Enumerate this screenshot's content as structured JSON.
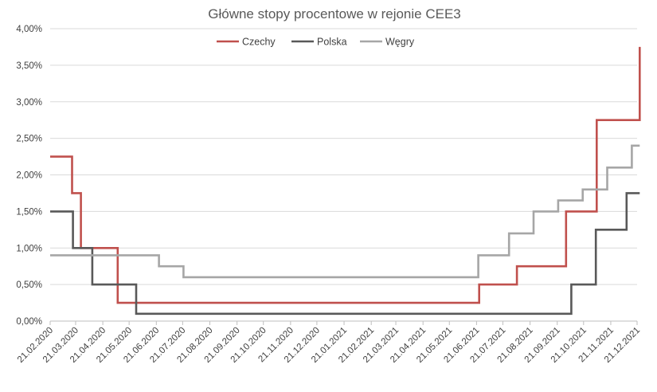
{
  "chart_data": {
    "type": "line",
    "title": "Główne stopy procentowe w rejonie CEE3",
    "xlabel": "",
    "ylabel": "",
    "ylim": [
      0,
      4
    ],
    "xlim": [
      "2020-02-21",
      "2021-12-21"
    ],
    "yticks": [
      0,
      0.5,
      1,
      1.5,
      2,
      2.5,
      3,
      3.5,
      4
    ],
    "ytick_labels": [
      "0,00%",
      "0,50%",
      "1,00%",
      "1,50%",
      "2,00%",
      "2,50%",
      "3,00%",
      "3,50%",
      "4,00%"
    ],
    "xtick_labels": [
      "21.02.2020",
      "21.03.2020",
      "21.04.2020",
      "21.05.2020",
      "21.06.2020",
      "21.07.2020",
      "21.08.2020",
      "21.09.2020",
      "21.10.2020",
      "21.11.2020",
      "21.12.2020",
      "21.01.2021",
      "21.02.2021",
      "21.03.2021",
      "21.04.2021",
      "21.05.2021",
      "21.06.2021",
      "21.07.2021",
      "21.08.2021",
      "21.09.2021",
      "21.10.2021",
      "21.11.2021",
      "21.12.2021"
    ],
    "xtick_dates": [
      "2020-02-21",
      "2020-03-21",
      "2020-04-21",
      "2020-05-21",
      "2020-06-21",
      "2020-07-21",
      "2020-08-21",
      "2020-09-21",
      "2020-10-21",
      "2020-11-21",
      "2020-12-21",
      "2021-01-21",
      "2021-02-21",
      "2021-03-21",
      "2021-04-21",
      "2021-05-21",
      "2021-06-21",
      "2021-07-21",
      "2021-08-21",
      "2021-09-21",
      "2021-10-21",
      "2021-11-21",
      "2021-12-21"
    ],
    "grid": true,
    "legend_position": "top",
    "series": [
      {
        "name": "Czechy",
        "color": "#c0504d",
        "step_points": [
          [
            "2020-02-21",
            2.25
          ],
          [
            "2020-03-17",
            1.75
          ],
          [
            "2020-03-27",
            1.0
          ],
          [
            "2020-05-08",
            0.25
          ],
          [
            "2021-06-24",
            0.5
          ],
          [
            "2021-08-06",
            0.75
          ],
          [
            "2021-10-01",
            1.5
          ],
          [
            "2021-11-05",
            2.75
          ],
          [
            "2021-12-24",
            3.75
          ]
        ],
        "end": "2021-12-24"
      },
      {
        "name": "Polska",
        "color": "#595959",
        "step_points": [
          [
            "2020-02-21",
            1.5
          ],
          [
            "2020-03-18",
            1.0
          ],
          [
            "2020-04-09",
            0.5
          ],
          [
            "2020-05-29",
            0.1
          ],
          [
            "2021-10-07",
            0.5
          ],
          [
            "2021-11-04",
            1.25
          ],
          [
            "2021-12-09",
            1.75
          ]
        ],
        "end": "2021-12-24"
      },
      {
        "name": "Węgry",
        "color": "#a6a6a6",
        "step_points": [
          [
            "2020-02-21",
            0.9
          ],
          [
            "2020-06-24",
            0.75
          ],
          [
            "2020-07-22",
            0.6
          ],
          [
            "2021-06-23",
            0.9
          ],
          [
            "2021-07-28",
            1.2
          ],
          [
            "2021-08-25",
            1.5
          ],
          [
            "2021-09-22",
            1.65
          ],
          [
            "2021-10-20",
            1.8
          ],
          [
            "2021-11-17",
            2.1
          ],
          [
            "2021-12-15",
            2.4
          ]
        ],
        "end": "2021-12-24"
      }
    ]
  }
}
